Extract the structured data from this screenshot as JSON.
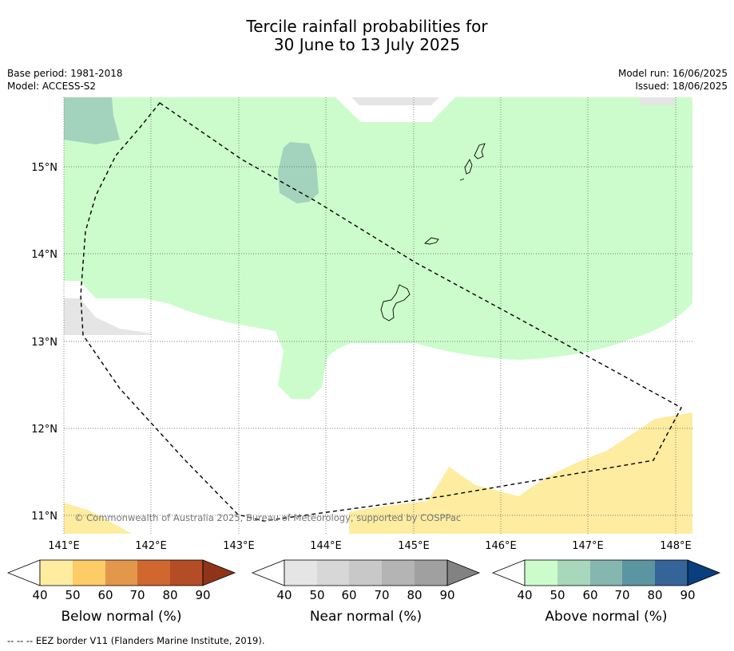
{
  "header": {
    "title_line1": "Tercile rainfall probabilities for",
    "title_line2": "30 June to 13 July 2025",
    "base_period": "Base period: 1981-2018",
    "model": "Model: ACCESS-S2",
    "model_run": "Model run: 16/06/2025",
    "issued": "Issued: 18/06/2025"
  },
  "map": {
    "lon_ticks": [
      "141°E",
      "142°E",
      "143°E",
      "144°E",
      "145°E",
      "146°E",
      "147°E",
      "148°E"
    ],
    "lat_ticks": [
      "15°N",
      "14°N",
      "13°N",
      "12°N",
      "11°N"
    ],
    "copyright": "© Commonwealth of Australia 2025, Bureau of Meteorology, supported by COSPPac",
    "colors": {
      "above_40": "#ccfccc",
      "above_50": "#a3d3bd",
      "near_40": "#e5e5e5",
      "below_40": "#feeca0"
    }
  },
  "colorbars": [
    {
      "label": "Below normal (%)",
      "ticks": [
        "40",
        "50",
        "60",
        "70",
        "80",
        "90"
      ],
      "colors": [
        "#feeca0",
        "#fdcc66",
        "#e3974b",
        "#d0672f",
        "#b44d26",
        "#8f3419"
      ]
    },
    {
      "label": "Near normal (%)",
      "ticks": [
        "40",
        "50",
        "60",
        "70",
        "80",
        "90"
      ],
      "colors": [
        "#e5e5e5",
        "#d7d7d7",
        "#c8c8c8",
        "#b4b4b4",
        "#a0a0a0",
        "#828282"
      ]
    },
    {
      "label": "Above normal (%)",
      "ticks": [
        "40",
        "50",
        "60",
        "70",
        "80",
        "90"
      ],
      "colors": [
        "#ccfccc",
        "#a8d7bb",
        "#85b7b0",
        "#5c95a2",
        "#356598",
        "#0a3f7d"
      ]
    }
  ],
  "footnote": "--  --  -- EEZ border V11 (Flanders Marine Institute, 2019)."
}
